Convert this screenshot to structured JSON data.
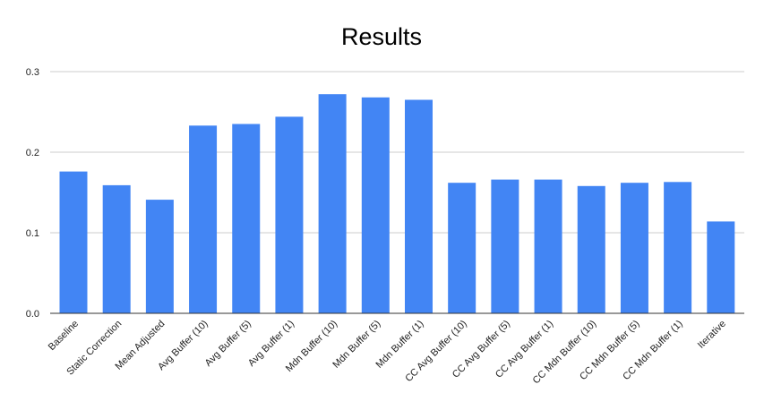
{
  "chart_data": {
    "type": "bar",
    "title": "Results",
    "xlabel": "",
    "ylabel": "",
    "ylim": [
      0,
      0.3
    ],
    "yticks": [
      "0.0",
      "0.1",
      "0.2",
      "0.3"
    ],
    "ytick_values": [
      0,
      0.1,
      0.2,
      0.3
    ],
    "grid": true,
    "legend": "none",
    "bar_color": "#4285f4",
    "categories": [
      "Baseline",
      "Static Correction",
      "Mean Adjusted",
      "Avg Buffer (10)",
      "Avg Buffer (5)",
      "Avg Buffer (1)",
      "Mdn Buffer (10)",
      "Mdn Buffer (5)",
      "Mdn Buffer (1)",
      "CC Avg Buffer (10)",
      "CC Avg Buffer (5)",
      "CC Avg Buffer (1)",
      "CC Mdn Buffer (10)",
      "CC Mdn Buffer (5)",
      "CC Mdn Buffer (1)",
      "Iterative"
    ],
    "values": [
      0.176,
      0.159,
      0.141,
      0.233,
      0.235,
      0.244,
      0.272,
      0.268,
      0.265,
      0.162,
      0.166,
      0.166,
      0.158,
      0.162,
      0.163,
      0.114
    ]
  }
}
